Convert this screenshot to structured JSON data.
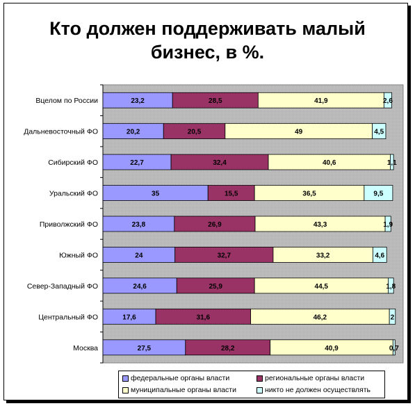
{
  "chart_data": {
    "type": "bar",
    "orientation": "horizontal",
    "stacked": true,
    "title": "Кто должен поддерживать малый бизнес, в %.",
    "title_lines": [
      "Кто должен поддерживать малый",
      "бизнес, в %."
    ],
    "categories": [
      "Вцелом по России",
      "Дальневосточный ФО",
      "Сибирский ФО",
      "Уральский ФО",
      "Приволжский ФО",
      "Южный ФО",
      "Север-Западный ФО",
      "Центральный ФО",
      "Москва"
    ],
    "series": [
      {
        "name": "федеральные органы власти",
        "color": "#9999ff",
        "values": [
          23.2,
          20.2,
          22.7,
          35,
          23.8,
          24,
          24.6,
          17.6,
          27.5
        ],
        "labels": [
          "23,2",
          "20,2",
          "22,7",
          "35",
          "23,8",
          "24",
          "24,6",
          "17,6",
          "27,5"
        ]
      },
      {
        "name": "региональные органы власти",
        "color": "#993366",
        "values": [
          28.5,
          20.5,
          32.4,
          15.5,
          26.9,
          32.7,
          25.9,
          31.6,
          28.2
        ],
        "labels": [
          "28,5",
          "20,5",
          "32,4",
          "15,5",
          "26,9",
          "32,7",
          "25,9",
          "31,6",
          "28,2"
        ]
      },
      {
        "name": "муниципальные органы власти",
        "color": "#ffffcc",
        "values": [
          41.9,
          49,
          40.6,
          36.5,
          43.3,
          33.2,
          44.5,
          46.2,
          40.9
        ],
        "labels": [
          "41,9",
          "49",
          "40,6",
          "36,5",
          "43,3",
          "33,2",
          "44,5",
          "46,2",
          "40,9"
        ]
      },
      {
        "name": "никто не должен осуществлять",
        "color": "#ccffff",
        "values": [
          2.6,
          4.5,
          1.1,
          9.5,
          1.9,
          4.6,
          1.8,
          2,
          0.7
        ],
        "labels": [
          "2,6",
          "4,5",
          "1,1",
          "9,5",
          "1,9",
          "4,6",
          "1,8",
          "2",
          "0,7"
        ]
      }
    ],
    "xlim": [
      0,
      100
    ],
    "plot_background": "#c0c0c0",
    "legend_position": "bottom"
  }
}
